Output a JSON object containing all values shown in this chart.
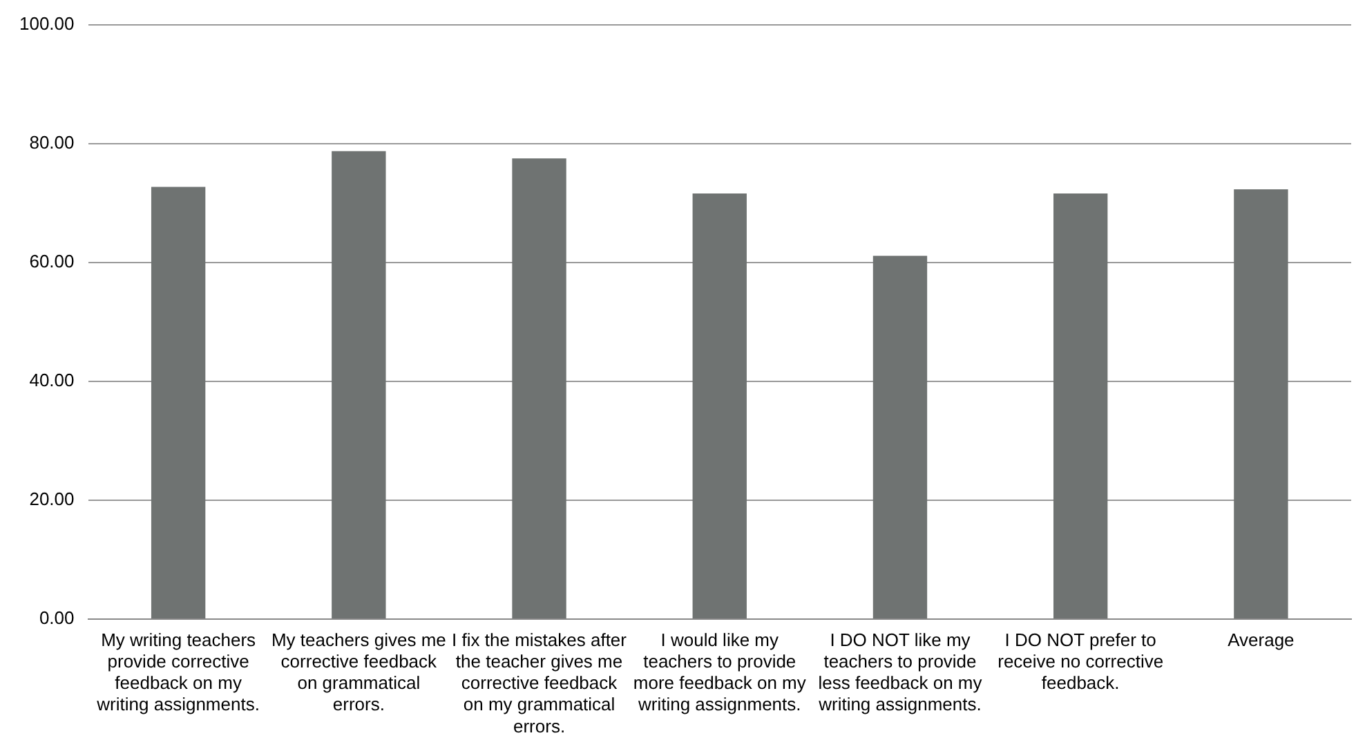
{
  "chart_data": {
    "type": "bar",
    "categories": [
      "My writing teachers provide corrective feedback on my writing assignments.",
      "My teachers gives me corrective feedback on grammatical errors.",
      "I fix the mistakes after the teacher gives me corrective feedback on my grammatical errors.",
      "I would like my teachers to provide more feedback on my writing assignments.",
      "I DO NOT like my teachers to provide less feedback on my writing assignments.",
      "I DO NOT prefer to receive no corrective feedback.",
      "Average"
    ],
    "values": [
      72.7,
      78.7,
      77.5,
      71.6,
      61.1,
      71.6,
      72.3
    ],
    "color": "#6f7372",
    "ylim": [
      0,
      100
    ],
    "yticks": [
      {
        "value": 0,
        "label": "0.00"
      },
      {
        "value": 20,
        "label": "20.00"
      },
      {
        "value": 40,
        "label": "40.00"
      },
      {
        "value": 60,
        "label": "60.00"
      },
      {
        "value": 80,
        "label": "80.00"
      },
      {
        "value": 100,
        "label": "100.00"
      }
    ],
    "grid": "y",
    "legend": false
  }
}
